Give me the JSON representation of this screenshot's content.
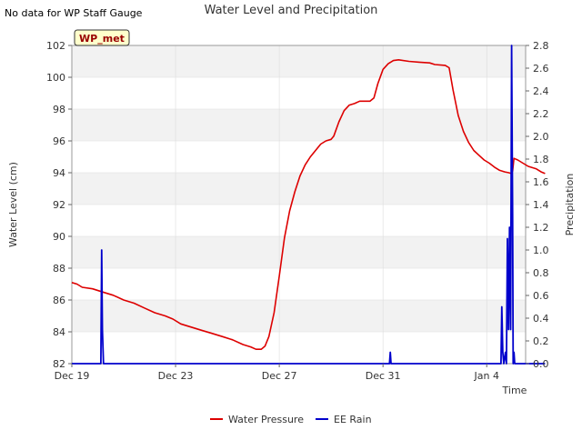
{
  "page": {
    "note": "No data for WP Staff Gauge",
    "badge": "WP_met"
  },
  "chart_data": {
    "type": "line",
    "title": "Water Level and Precipitation",
    "xlabel": "Time",
    "ylabel": "Water Level (cm)",
    "y2label": "Precipitation",
    "x_unit": "days since Dec 19",
    "xlim": [
      0,
      17.5
    ],
    "ylim": [
      82,
      102
    ],
    "y2lim": [
      0,
      2.8
    ],
    "x_ticks": [
      {
        "value": 0,
        "label": "Dec 19"
      },
      {
        "value": 4,
        "label": "Dec 23"
      },
      {
        "value": 8,
        "label": "Dec 27"
      },
      {
        "value": 12,
        "label": "Dec 31"
      },
      {
        "value": 16,
        "label": "Jan 4"
      }
    ],
    "y_ticks": [
      82,
      84,
      86,
      88,
      90,
      92,
      94,
      96,
      98,
      100,
      102
    ],
    "y2_ticks": [
      "0.0",
      "0.2",
      "0.4",
      "0.6",
      "0.8",
      "1.0",
      "1.2",
      "1.4",
      "1.6",
      "1.8",
      "2.0",
      "2.2",
      "2.4",
      "2.6",
      "2.8"
    ],
    "legend_position": "bottom-center",
    "colors": {
      "water": "#dd0000",
      "rain": "#0000cc",
      "band": "#f2f2f2",
      "grid": "#dddddd",
      "badge_bg": "#ffffcc",
      "badge_text": "#990000"
    },
    "series": [
      {
        "name": "Water Pressure",
        "axis": "left",
        "points": [
          [
            0.0,
            87.1
          ],
          [
            0.2,
            87.0
          ],
          [
            0.4,
            86.8
          ],
          [
            0.8,
            86.7
          ],
          [
            1.2,
            86.5
          ],
          [
            1.6,
            86.3
          ],
          [
            2.0,
            86.0
          ],
          [
            2.4,
            85.8
          ],
          [
            2.8,
            85.5
          ],
          [
            3.2,
            85.2
          ],
          [
            3.6,
            85.0
          ],
          [
            3.9,
            84.8
          ],
          [
            4.2,
            84.5
          ],
          [
            4.6,
            84.3
          ],
          [
            5.0,
            84.1
          ],
          [
            5.4,
            83.9
          ],
          [
            5.8,
            83.7
          ],
          [
            6.2,
            83.5
          ],
          [
            6.6,
            83.2
          ],
          [
            6.9,
            83.05
          ],
          [
            7.1,
            82.9
          ],
          [
            7.3,
            82.9
          ],
          [
            7.45,
            83.1
          ],
          [
            7.6,
            83.7
          ],
          [
            7.8,
            85.2
          ],
          [
            8.0,
            87.5
          ],
          [
            8.2,
            89.9
          ],
          [
            8.4,
            91.6
          ],
          [
            8.6,
            92.8
          ],
          [
            8.8,
            93.8
          ],
          [
            9.0,
            94.5
          ],
          [
            9.2,
            95.0
          ],
          [
            9.4,
            95.4
          ],
          [
            9.6,
            95.8
          ],
          [
            9.8,
            96.0
          ],
          [
            10.0,
            96.1
          ],
          [
            10.1,
            96.3
          ],
          [
            10.3,
            97.2
          ],
          [
            10.5,
            97.9
          ],
          [
            10.7,
            98.25
          ],
          [
            10.9,
            98.35
          ],
          [
            11.1,
            98.5
          ],
          [
            11.3,
            98.5
          ],
          [
            11.5,
            98.5
          ],
          [
            11.65,
            98.7
          ],
          [
            11.8,
            99.6
          ],
          [
            12.0,
            100.5
          ],
          [
            12.2,
            100.85
          ],
          [
            12.4,
            101.05
          ],
          [
            12.6,
            101.1
          ],
          [
            13.0,
            101.0
          ],
          [
            13.4,
            100.95
          ],
          [
            13.8,
            100.9
          ],
          [
            14.0,
            100.8
          ],
          [
            14.4,
            100.75
          ],
          [
            14.55,
            100.6
          ],
          [
            14.7,
            99.2
          ],
          [
            14.9,
            97.6
          ],
          [
            15.1,
            96.6
          ],
          [
            15.3,
            95.9
          ],
          [
            15.5,
            95.4
          ],
          [
            15.7,
            95.1
          ],
          [
            15.9,
            94.8
          ],
          [
            16.1,
            94.6
          ],
          [
            16.3,
            94.35
          ],
          [
            16.5,
            94.15
          ],
          [
            16.7,
            94.05
          ],
          [
            16.85,
            94.0
          ],
          [
            16.95,
            93.95
          ],
          [
            17.0,
            94.1
          ],
          [
            17.05,
            94.9
          ],
          [
            17.2,
            94.8
          ],
          [
            17.4,
            94.6
          ],
          [
            17.6,
            94.4
          ],
          [
            17.9,
            94.25
          ],
          [
            18.1,
            94.05
          ],
          [
            18.25,
            93.95
          ]
        ]
      },
      {
        "name": "EE Rain",
        "axis": "right",
        "points": [
          [
            0.0,
            0.0
          ],
          [
            1.12,
            0.0
          ],
          [
            1.15,
            1.0
          ],
          [
            1.18,
            0.3
          ],
          [
            1.22,
            0.0
          ],
          [
            12.25,
            0.0
          ],
          [
            12.28,
            0.1
          ],
          [
            12.31,
            0.0
          ],
          [
            16.55,
            0.0
          ],
          [
            16.58,
            0.5
          ],
          [
            16.62,
            0.1
          ],
          [
            16.66,
            0.0
          ],
          [
            16.72,
            0.1
          ],
          [
            16.76,
            0.0
          ],
          [
            16.8,
            1.1
          ],
          [
            16.84,
            0.3
          ],
          [
            16.88,
            1.2
          ],
          [
            16.92,
            0.3
          ],
          [
            16.96,
            2.8
          ],
          [
            17.0,
            1.3
          ],
          [
            17.02,
            0.0
          ],
          [
            17.05,
            0.1
          ],
          [
            17.08,
            0.0
          ],
          [
            18.25,
            0.0
          ]
        ]
      }
    ]
  }
}
